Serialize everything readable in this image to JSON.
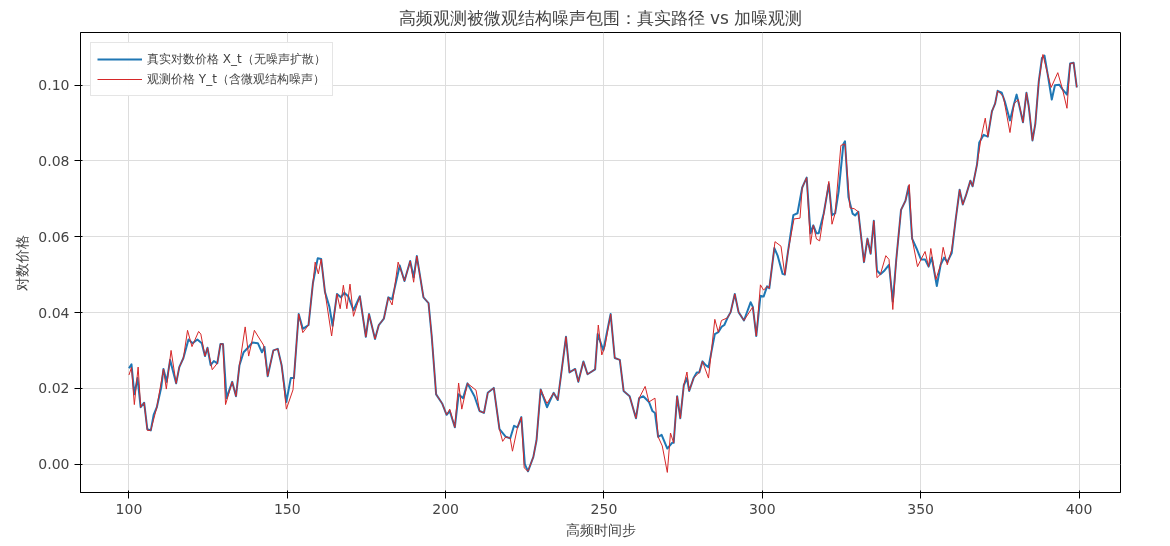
{
  "chart_data": {
    "type": "line",
    "title": "高频观测被微观结构噪声包围：真实路径 vs 加噪观测",
    "xlabel": "高频时间步",
    "ylabel": "对数价格",
    "xlim": [
      84.7,
      413.1
    ],
    "ylim": [
      -0.0075,
      0.1139
    ],
    "xticks": [
      100,
      150,
      200,
      250,
      300,
      350,
      400
    ],
    "yticks": [
      {
        "value": 0,
        "label": "0.00"
      },
      {
        "value": 0.02,
        "label": "0.02"
      },
      {
        "value": 0.04,
        "label": "0.04"
      },
      {
        "value": 0.06,
        "label": "0.06"
      },
      {
        "value": 0.08,
        "label": "0.08"
      },
      {
        "value": 0.1,
        "label": "0.10"
      }
    ],
    "grid": true,
    "legend": "top left",
    "marker": "none",
    "series": [
      {
        "name": "真实对数价格 X_t（无噪声扩散）",
        "color": "#1f77b4",
        "x": [
          100,
          100.8,
          101.7,
          102.7,
          103.7,
          104.8,
          105.8,
          106.9,
          107.8,
          108.8,
          110.2,
          110.9,
          111.9,
          113,
          114.9,
          115.9,
          117.2,
          118.8,
          120.1,
          121.6,
          123,
          124,
          124.8,
          125.8,
          126.8,
          127.9,
          128.9,
          129.7,
          130.8,
          132.6,
          133.8,
          134.9,
          136.2,
          137.8,
          139,
          140.7,
          142,
          142.8,
          143.8,
          145.6,
          147,
          148.2,
          149.7,
          151.1,
          152.1,
          153.6,
          154.9,
          156.7,
          158.1,
          159.6,
          160.7,
          161.9,
          163.3,
          164.3,
          165.7,
          166.9,
          168,
          169.2,
          170.9,
          172.9,
          174.8,
          175.8,
          177.7,
          178.9,
          180.5,
          181.9,
          183.1,
          185.5,
          187,
          188.8,
          189.9,
          190.9,
          193,
          194.6,
          195.6,
          197,
          198.9,
          200.3,
          201.3,
          202.9,
          204.1,
          205.5,
          206.9,
          209.1,
          210.7,
          212.1,
          213.3,
          215.2,
          217,
          219,
          220.4,
          221.6,
          222.7,
          223.9,
          225,
          226,
          227.7,
          228.7,
          230,
          232,
          234.1,
          235.4,
          236.4,
          238,
          239.1,
          240.9,
          241.9,
          243.5,
          244.8,
          247.2,
          248,
          249.8,
          252.1,
          253.4,
          255,
          256.2,
          258.1,
          260.1,
          261.1,
          262.4,
          264.2,
          265.3,
          266.1,
          267.1,
          268.2,
          270,
          271.5,
          272,
          273.1,
          274.1,
          275.2,
          276.2,
          276.9,
          278.3,
          279.3,
          280.1,
          281.1,
          282.1,
          283,
          285,
          286.1,
          287.1,
          288,
          289,
          290,
          291.3,
          292.5,
          294.2,
          296.3,
          297,
          298.1,
          299.4,
          300.4,
          301.5,
          302.2,
          303.8,
          304.8,
          306.4,
          307.1,
          308.1,
          309.8,
          311.1,
          312.6,
          314,
          315.2,
          316.1,
          317.1,
          317.8,
          319.4,
          321,
          322,
          323,
          324.1,
          325.6,
          326.1,
          327.2,
          328.5,
          329.3,
          330.3,
          332.1,
          333.2,
          334.2,
          335.2,
          336.2,
          337.3,
          338.6,
          340,
          341.2,
          342.3,
          343.8,
          345.2,
          346.2,
          347.3,
          348.7,
          350.1,
          351.4,
          352.5,
          353.5,
          355.1,
          356.3,
          357.4,
          358.4,
          359.8,
          361,
          362.3,
          363.3,
          364.3,
          365.7,
          366.4,
          367.8,
          368.5,
          369.9,
          371.2,
          372.5,
          373.5,
          374.3,
          375.6,
          376.6,
          378.2,
          379.5,
          380.3,
          381,
          382.3,
          383.4,
          384.1,
          385.3,
          386.2,
          387.3,
          388.3,
          389.1,
          390.1,
          391.4,
          392.4,
          393.8,
          394.8,
          396.2,
          397.2,
          398.3,
          399.3
        ],
        "values": [
          0.0253,
          0.0263,
          0.0184,
          0.0227,
          0.015,
          0.0162,
          0.0092,
          0.0089,
          0.013,
          0.015,
          0.0203,
          0.0251,
          0.0217,
          0.0275,
          0.0213,
          0.0256,
          0.028,
          0.0329,
          0.0319,
          0.0329,
          0.0319,
          0.0285,
          0.0307,
          0.0261,
          0.0272,
          0.0266,
          0.0317,
          0.0317,
          0.0174,
          0.0217,
          0.0179,
          0.0261,
          0.0295,
          0.0309,
          0.0321,
          0.0319,
          0.0295,
          0.0309,
          0.0232,
          0.03,
          0.0304,
          0.0261,
          0.0164,
          0.0227,
          0.0227,
          0.0396,
          0.0357,
          0.0367,
          0.0478,
          0.0543,
          0.0541,
          0.0454,
          0.0415,
          0.0365,
          0.0449,
          0.044,
          0.0452,
          0.0443,
          0.0406,
          0.0443,
          0.0336,
          0.0396,
          0.033,
          0.0367,
          0.0384,
          0.044,
          0.0435,
          0.0524,
          0.0483,
          0.0536,
          0.0493,
          0.0549,
          0.044,
          0.0425,
          0.0338,
          0.0184,
          0.016,
          0.013,
          0.014,
          0.0097,
          0.0184,
          0.0174,
          0.0213,
          0.0179,
          0.014,
          0.0135,
          0.0188,
          0.0201,
          0.0092,
          0.0072,
          0.0068,
          0.0101,
          0.0097,
          0.0124,
          0.0,
          -0.0019,
          0.0019,
          0.0063,
          0.0197,
          0.015,
          0.0188,
          0.0169,
          0.0232,
          0.0336,
          0.0242,
          0.0251,
          0.0217,
          0.0271,
          0.0237,
          0.025,
          0.0343,
          0.03,
          0.0396,
          0.028,
          0.0275,
          0.0193,
          0.0179,
          0.0121,
          0.0174,
          0.0179,
          0.0164,
          0.014,
          0.0135,
          0.0072,
          0.0077,
          0.0041,
          0.0056,
          0.0056,
          0.0179,
          0.0121,
          0.0208,
          0.0227,
          0.0193,
          0.0227,
          0.0242,
          0.0242,
          0.0271,
          0.0261,
          0.0256,
          0.0343,
          0.0348,
          0.0362,
          0.0367,
          0.0386,
          0.0401,
          0.0449,
          0.0401,
          0.0379,
          0.0427,
          0.0415,
          0.0338,
          0.0444,
          0.0442,
          0.0469,
          0.0464,
          0.057,
          0.0551,
          0.0502,
          0.05,
          0.056,
          0.0657,
          0.0662,
          0.073,
          0.0756,
          0.0609,
          0.063,
          0.0609,
          0.0609,
          0.0662,
          0.0739,
          0.0657,
          0.0662,
          0.072,
          0.0845,
          0.0852,
          0.0705,
          0.0661,
          0.0656,
          0.0666,
          0.0533,
          0.0595,
          0.0555,
          0.0642,
          0.0511,
          0.0501,
          0.0511,
          0.0526,
          0.0429,
          0.054,
          0.0671,
          0.0695,
          0.0733,
          0.0595,
          0.0569,
          0.054,
          0.054,
          0.0521,
          0.0545,
          0.047,
          0.0526,
          0.0545,
          0.0533,
          0.0557,
          0.0642,
          0.0724,
          0.0685,
          0.0709,
          0.0748,
          0.0733,
          0.0791,
          0.0849,
          0.0869,
          0.0864,
          0.0931,
          0.0951,
          0.0985,
          0.098,
          0.0956,
          0.0907,
          0.0951,
          0.0975,
          0.0951,
          0.0902,
          0.098,
          0.0946,
          0.0854,
          0.0898,
          0.101,
          0.1072,
          0.1078,
          0.1029,
          0.0962,
          0.1,
          0.1001,
          0.0989,
          0.0975,
          0.1057,
          0.1059,
          0.0994
        ]
      },
      {
        "name": "观测价格 Y_t（含微观结构噪声）",
        "color": "#d62728",
        "x": [
          100,
          100.8,
          101.7,
          102.9,
          103.7,
          104.8,
          105.8,
          106.9,
          108.8,
          110.9,
          111.8,
          113.3,
          114.9,
          115.9,
          117.2,
          118.5,
          119.9,
          122,
          122.7,
          124,
          124.8,
          126.3,
          127.9,
          128.9,
          129.7,
          130.5,
          132.6,
          133.8,
          134.9,
          136.7,
          137.8,
          139.6,
          140.7,
          142.5,
          143.8,
          145.6,
          147,
          148.2,
          149.7,
          151.8,
          153.6,
          154.9,
          156.7,
          158.8,
          159.8,
          160.7,
          161.9,
          164,
          165.7,
          166.7,
          167.7,
          168.8,
          169.8,
          170.9,
          172.9,
          174.8,
          175.8,
          177.7,
          178.9,
          180.5,
          181.9,
          183.1,
          185,
          187,
          188.8,
          189.9,
          190.9,
          193,
          194.6,
          195.6,
          197,
          198.9,
          200.3,
          201.3,
          202.9,
          204.1,
          205.1,
          206.9,
          209.6,
          210.7,
          212.1,
          213.3,
          215.2,
          217,
          218,
          219,
          220.4,
          221.1,
          222.7,
          223.9,
          224.8,
          226,
          227.7,
          228.7,
          230,
          232,
          234.1,
          235.4,
          236.4,
          238,
          239.1,
          240.9,
          241.9,
          243.5,
          244.8,
          247.2,
          248.2,
          249.3,
          250.3,
          252.1,
          253.4,
          255,
          256.2,
          258.1,
          260.1,
          261.1,
          263,
          264.2,
          266.1,
          267.1,
          268.4,
          270,
          271,
          272,
          273.1,
          274.1,
          275.2,
          276.2,
          276.9,
          278.3,
          280.1,
          281.1,
          283,
          285,
          286.1,
          287.1,
          289,
          290,
          291.3,
          292.5,
          294.2,
          297,
          298.1,
          299.4,
          300.4,
          301.5,
          302.2,
          304,
          305.9,
          307.1,
          308.1,
          310,
          311.9,
          312.6,
          314,
          315.2,
          316.1,
          317.1,
          318.1,
          321,
          322,
          323,
          324.8,
          326.1,
          327.7,
          329,
          330.3,
          332.1,
          333.2,
          334.2,
          335.2,
          336.2,
          337.3,
          339,
          340,
          341.2,
          342.3,
          343.8,
          345.2,
          346.4,
          347.3,
          349,
          350.1,
          351.4,
          352.5,
          353.2,
          354.8,
          356.3,
          357.1,
          358.4,
          359.8,
          361,
          362.3,
          363.3,
          364.3,
          365.7,
          366.4,
          367.8,
          369.1,
          370.4,
          371.2,
          372.5,
          373.5,
          374.3,
          376.1,
          378.2,
          379.5,
          380.8,
          382.3,
          383.4,
          384.4,
          385.3,
          386.2,
          387.3,
          388.6,
          390.1,
          391.2,
          393.3,
          394.8,
          396.2,
          397.2,
          398.3,
          399.3
        ],
        "values": [
          0.0235,
          0.0255,
          0.0157,
          0.0256,
          0.015,
          0.0162,
          0.0089,
          0.0089,
          0.015,
          0.0251,
          0.0198,
          0.03,
          0.0213,
          0.0256,
          0.028,
          0.0353,
          0.031,
          0.035,
          0.0343,
          0.0285,
          0.0307,
          0.0249,
          0.0266,
          0.0317,
          0.0317,
          0.0157,
          0.0217,
          0.0179,
          0.0261,
          0.0362,
          0.0285,
          0.0353,
          0.0338,
          0.0314,
          0.0232,
          0.03,
          0.0304,
          0.0261,
          0.0145,
          0.0196,
          0.0396,
          0.0347,
          0.0367,
          0.0533,
          0.0502,
          0.0541,
          0.0454,
          0.0338,
          0.0449,
          0.041,
          0.0472,
          0.041,
          0.0475,
          0.039,
          0.0443,
          0.0336,
          0.0396,
          0.033,
          0.0367,
          0.0384,
          0.044,
          0.042,
          0.0533,
          0.0483,
          0.0536,
          0.048,
          0.0549,
          0.044,
          0.0425,
          0.0338,
          0.0184,
          0.016,
          0.013,
          0.0145,
          0.0097,
          0.0214,
          0.0145,
          0.0213,
          0.0195,
          0.014,
          0.0135,
          0.0188,
          0.0201,
          0.0092,
          0.006,
          0.0072,
          0.0068,
          0.0034,
          0.0097,
          0.0124,
          -0.001,
          -0.0019,
          0.0019,
          0.0063,
          0.0197,
          0.016,
          0.0188,
          0.0169,
          0.0232,
          0.0336,
          0.0242,
          0.0251,
          0.0217,
          0.027,
          0.0237,
          0.025,
          0.0367,
          0.0288,
          0.031,
          0.0396,
          0.028,
          0.0275,
          0.0193,
          0.0179,
          0.0121,
          0.0174,
          0.0205,
          0.0164,
          0.0174,
          0.0072,
          0.0048,
          -0.0022,
          0.0082,
          0.0056,
          0.0179,
          0.0121,
          0.0208,
          0.0243,
          0.0193,
          0.0227,
          0.0242,
          0.0271,
          0.0227,
          0.0382,
          0.0348,
          0.0379,
          0.0386,
          0.0401,
          0.0449,
          0.0401,
          0.0379,
          0.0415,
          0.0338,
          0.0473,
          0.0459,
          0.0469,
          0.0464,
          0.0587,
          0.0575,
          0.05,
          0.056,
          0.0647,
          0.0649,
          0.073,
          0.0756,
          0.058,
          0.063,
          0.0594,
          0.0589,
          0.0746,
          0.0633,
          0.0662,
          0.0841,
          0.0845,
          0.0676,
          0.0674,
          0.0666,
          0.0533,
          0.0595,
          0.0555,
          0.0642,
          0.0492,
          0.0501,
          0.055,
          0.054,
          0.0408,
          0.054,
          0.0671,
          0.0695,
          0.0738,
          0.0595,
          0.0521,
          0.054,
          0.0561,
          0.0521,
          0.0569,
          0.0487,
          0.0526,
          0.0572,
          0.0526,
          0.0566,
          0.0642,
          0.0724,
          0.0685,
          0.0709,
          0.0748,
          0.0733,
          0.0791,
          0.0862,
          0.0913,
          0.0864,
          0.0931,
          0.0951,
          0.0985,
          0.097,
          0.0875,
          0.0951,
          0.0962,
          0.0902,
          0.098,
          0.0927,
          0.0854,
          0.0898,
          0.101,
          0.1081,
          0.1029,
          0.0994,
          0.1033,
          0.0989,
          0.0939,
          0.1057,
          0.1059,
          0.0994
        ]
      }
    ]
  }
}
